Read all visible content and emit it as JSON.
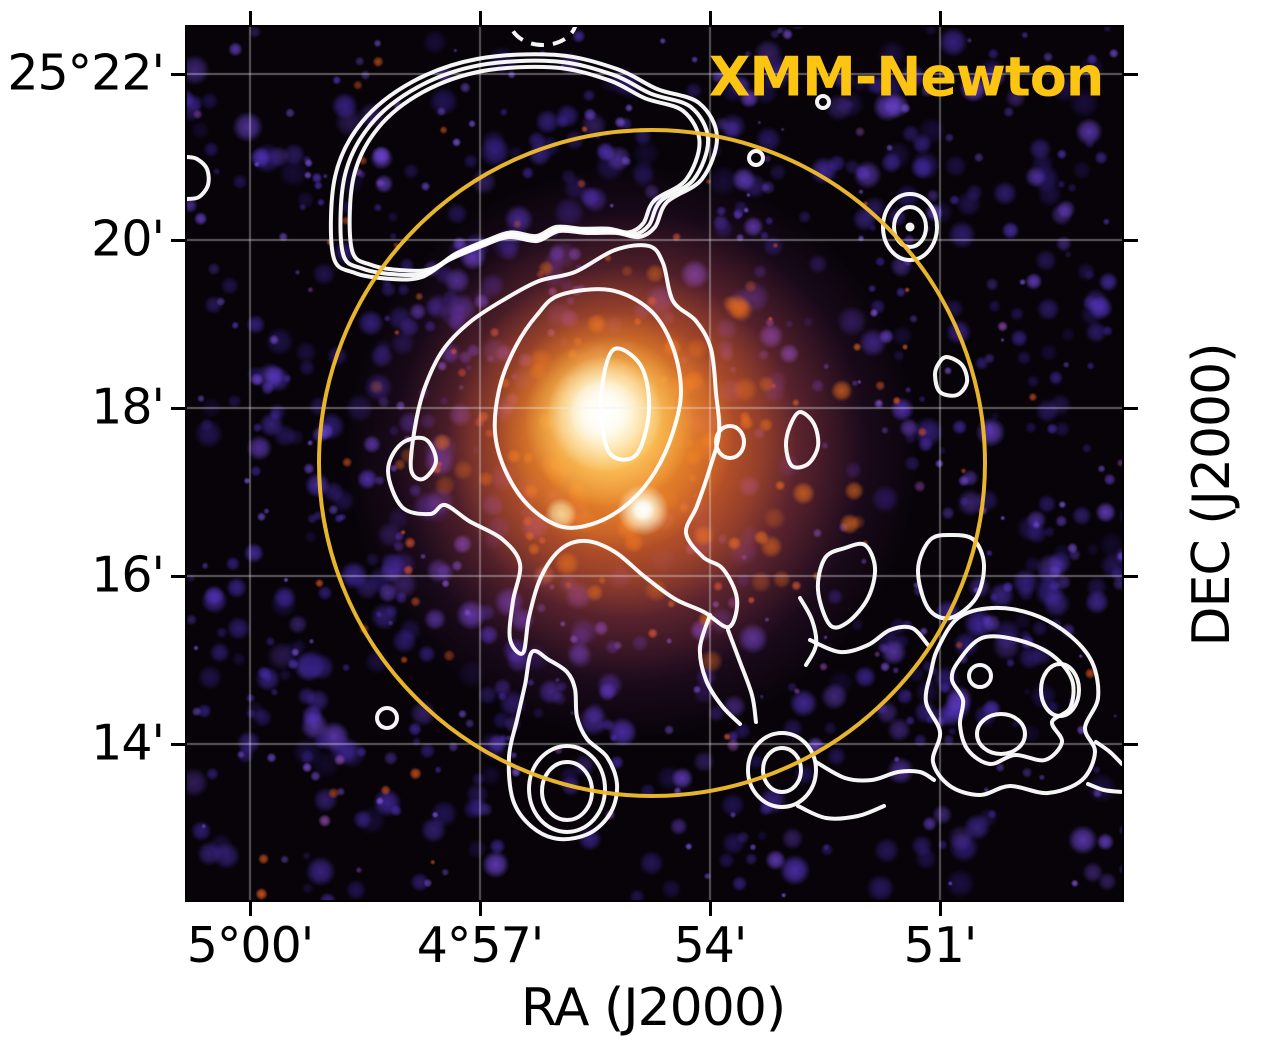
{
  "figure": {
    "annotation": "XMM-Newton",
    "annotation_color": "#fcc511",
    "xlabel": "RA (J2000)",
    "ylabel": "DEC (J2000)",
    "x_ticks": [
      "5°00'",
      "4°57'",
      "54'",
      "51'"
    ],
    "y_ticks": [
      "25°22'",
      "20'",
      "18'",
      "16'",
      "14'"
    ],
    "colors": {
      "page_background": "#ffffff",
      "image_background": "#070309",
      "contour": "#ffffff",
      "aperture_circle": "#eebb2e",
      "grid": "rgba(240,240,240,0.5)",
      "axis": "#000000",
      "noise_purple": [
        "42,26,110",
        "58,36,144",
        "74,45,178",
        "90,56,204",
        "112,70,216"
      ],
      "noise_speckle": "130,88,230",
      "noise_pink": "168,85,200",
      "noise_orange": "225,88,30",
      "core_orange": "242,115,30",
      "core_yellow": "255,215,110",
      "core_white": "255,255,255"
    }
  },
  "chart_data": {
    "type": "heatmap",
    "title": "",
    "xlabel": "RA (J2000)",
    "ylabel": "DEC (J2000)",
    "x_tick_labels": [
      "5°00'",
      "4°57'",
      "54'",
      "51'"
    ],
    "y_tick_labels": [
      "25°22'",
      "20'",
      "18'",
      "16'",
      "14'"
    ],
    "x_axis_note": "Right ascension increases to the left; ticks every 3 arcmin",
    "y_axis_note": "Declination ticks every 2 arcmin",
    "grid": true,
    "colormap": "black - violet - orange - yellow - white (X-ray surface brightness)",
    "annotations": [
      {
        "text": "XMM-Newton",
        "color": "#fcc511",
        "position": "top-right",
        "style": "bold"
      }
    ],
    "image_content": {
      "description": "Diffuse X-ray emission of a galaxy cluster; bright peak near RA 4°55.5', DEC 25°18' surrounded by orange halo and violet background noise",
      "peak_position": {
        "ra": "~4°55.5'",
        "dec": "~25°18'"
      }
    },
    "overlays": [
      {
        "name": "radio_contours",
        "color": "#ffffff",
        "style": "solid, ~4px; one dashed negative contour at top centre",
        "features": [
          "large arc-shaped relic north of centre with three nested contours",
          "central contour complex around the X-ray peak with nested levels",
          "ring system with nub directly south of centre",
          "extended lobed structure with nested rings in the south-west corner",
          "compact double-ring source near RA 4°51.5', DEC 25°20'",
          "small point-source rings scattered over the field"
        ]
      },
      {
        "name": "aperture_circle",
        "shape": "circle",
        "color": "#eebb2e",
        "center": {
          "ra": "~4°55.2'",
          "dec": "~25°17.7'"
        },
        "radius_arcmin": "~4"
      }
    ]
  }
}
